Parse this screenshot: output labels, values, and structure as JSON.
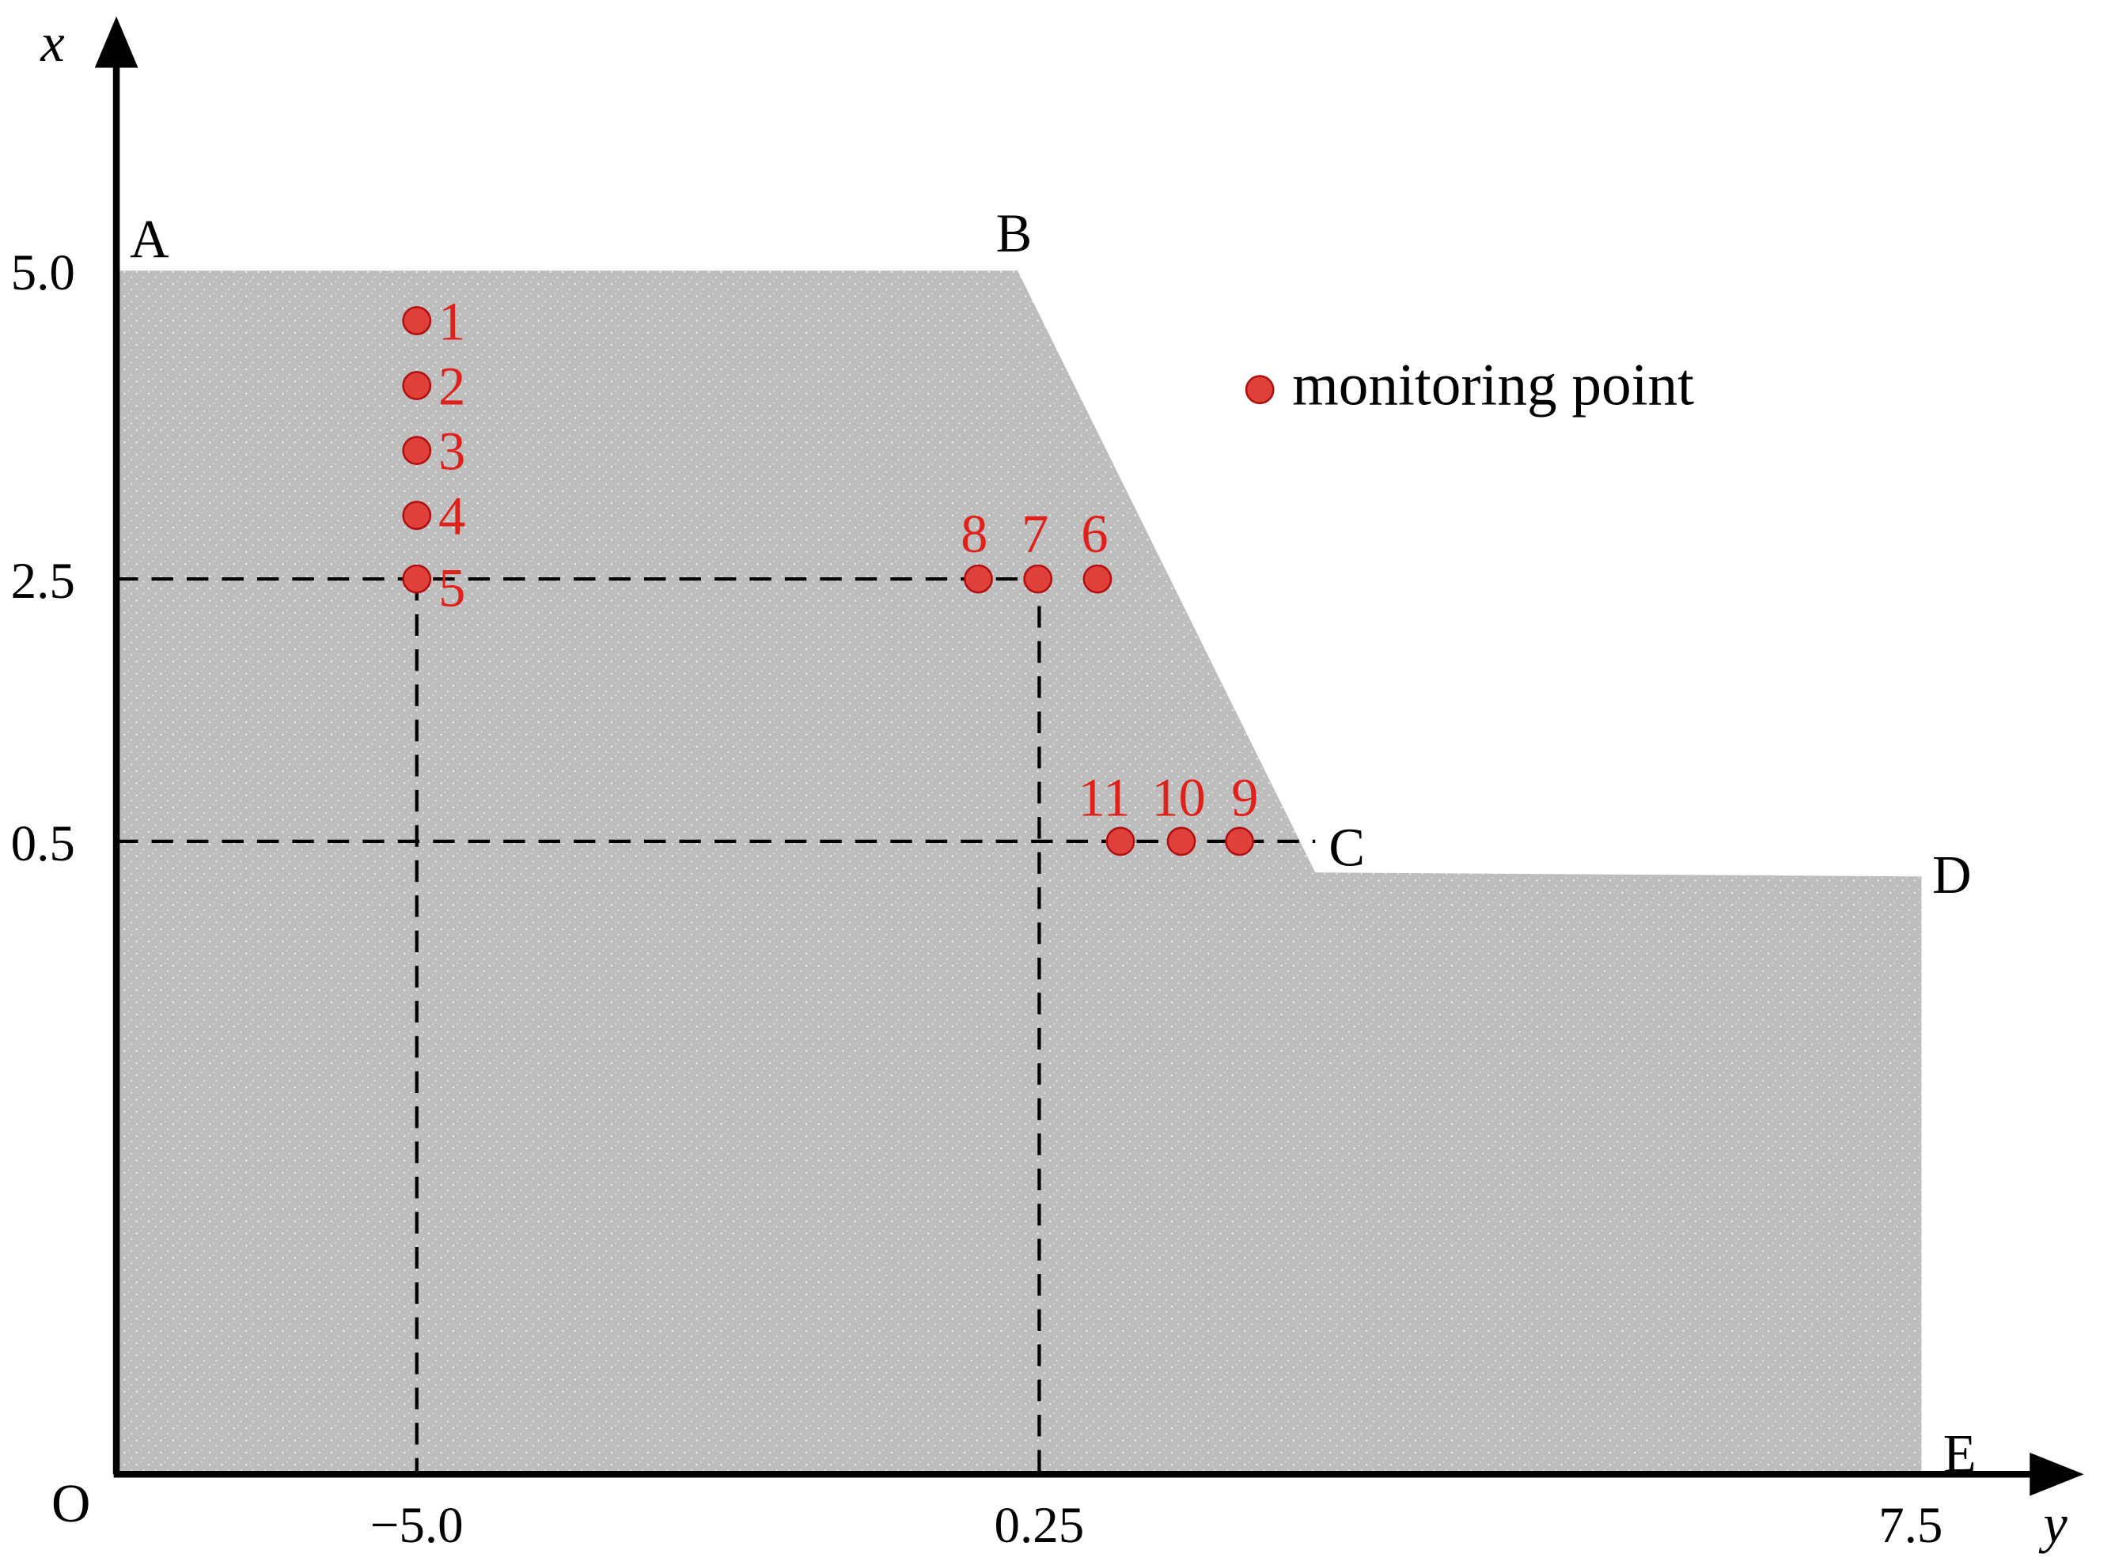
{
  "axes": {
    "x_label": "x",
    "y_label": "y",
    "origin": "O",
    "x_ticks": [
      "5.0",
      "2.5",
      "0.5"
    ],
    "y_ticks": [
      "−5.0",
      "0.25",
      "7.5"
    ]
  },
  "corners": [
    "A",
    "B",
    "C",
    "D",
    "E"
  ],
  "points": [
    "1",
    "2",
    "3",
    "4",
    "5",
    "6",
    "7",
    "8",
    "9",
    "10",
    "11"
  ],
  "legend": "monitoring point"
}
